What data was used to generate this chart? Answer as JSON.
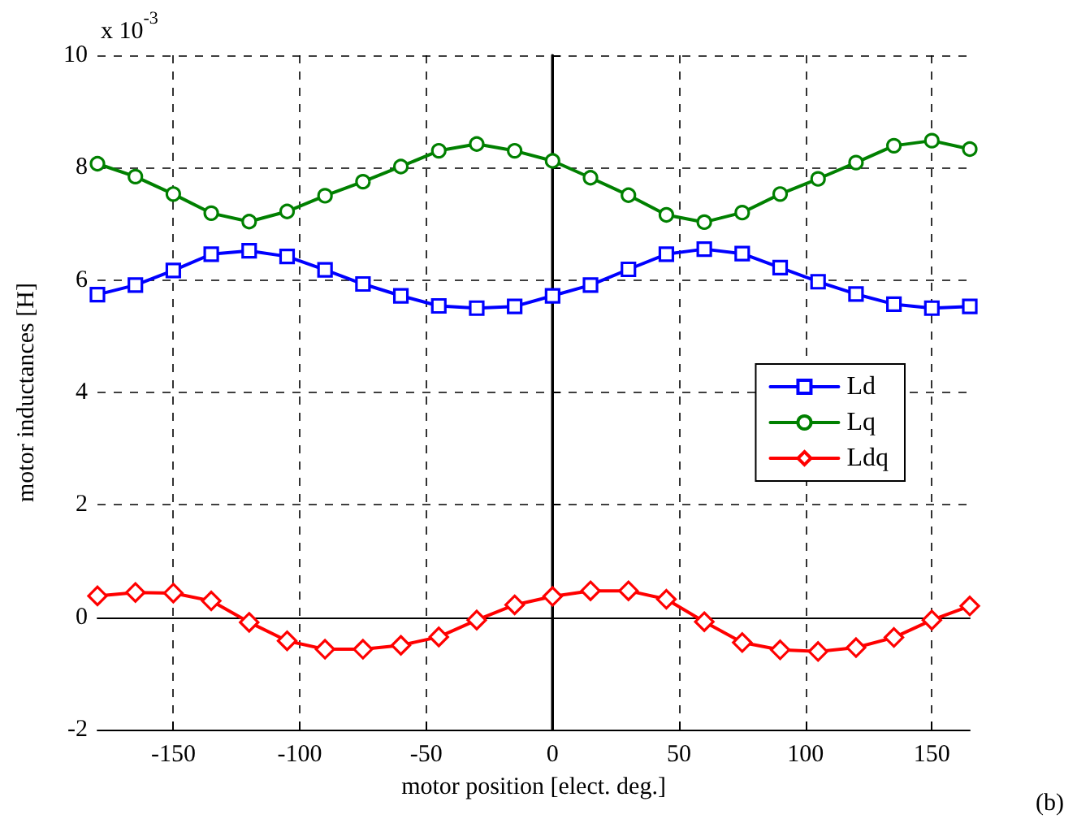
{
  "chart_data": {
    "type": "line",
    "xlabel": "motor position [elect. deg.]",
    "ylabel": "motor inductances [H]",
    "annotations": [
      "x 10$^{-3}$",
      "(b)"
    ],
    "x": [
      -180,
      -165,
      -150,
      -135,
      -120,
      -105,
      -90,
      -75,
      -60,
      -45,
      -30,
      -15,
      0,
      15,
      30,
      45,
      60,
      75,
      90,
      105,
      120,
      135,
      150,
      165
    ],
    "series": [
      {
        "name": "Ld",
        "color": "#0000ff",
        "marker": "square",
        "values": [
          5.74,
          5.91,
          6.17,
          6.46,
          6.52,
          6.42,
          6.18,
          5.93,
          5.72,
          5.54,
          5.5,
          5.53,
          5.72,
          5.91,
          6.19,
          6.46,
          6.55,
          6.47,
          6.22,
          5.97,
          5.75,
          5.57,
          5.5,
          5.53
        ]
      },
      {
        "name": "Lq",
        "color": "#008000",
        "marker": "circle",
        "values": [
          8.07,
          7.84,
          7.53,
          7.19,
          7.04,
          7.22,
          7.5,
          7.75,
          8.02,
          8.3,
          8.42,
          8.3,
          8.12,
          7.82,
          7.51,
          7.16,
          7.03,
          7.2,
          7.53,
          7.8,
          8.09,
          8.39,
          8.48,
          8.33
        ]
      },
      {
        "name": "Ldq",
        "color": "#ff0000",
        "marker": "diamond",
        "values": [
          0.38,
          0.44,
          0.43,
          0.29,
          -0.09,
          -0.42,
          -0.57,
          -0.57,
          -0.5,
          -0.35,
          -0.05,
          0.22,
          0.37,
          0.47,
          0.47,
          0.32,
          -0.08,
          -0.45,
          -0.58,
          -0.61,
          -0.54,
          -0.36,
          -0.05,
          0.2
        ]
      }
    ],
    "xlim": [
      -180,
      165
    ],
    "xticks": [
      -150,
      -100,
      -50,
      0,
      50,
      100,
      150
    ],
    "ylim": [
      -2,
      10
    ],
    "yticks": [
      -2,
      0,
      2,
      4,
      6,
      8,
      10
    ],
    "grid": true,
    "legend": "right",
    "line_style": "solid"
  }
}
